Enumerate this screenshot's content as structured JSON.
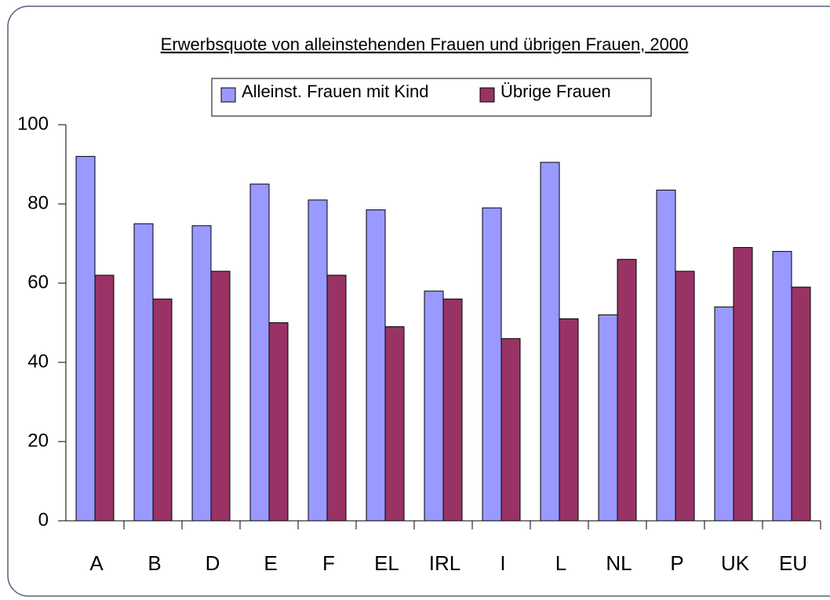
{
  "chart_data": {
    "type": "bar",
    "title": "Erwerbsquote von alleinstehenden Frauen und übrigen Frauen, 2000",
    "categories": [
      "A",
      "B",
      "D",
      "E",
      "F",
      "EL",
      "IRL",
      "I",
      "L",
      "NL",
      "P",
      "UK",
      "EU"
    ],
    "series": [
      {
        "name": "Alleinst. Frauen mit Kind",
        "color": "#9999ff",
        "values": [
          92,
          75,
          74.5,
          85,
          81,
          78.5,
          58,
          79,
          90.5,
          52,
          83.5,
          54,
          68
        ]
      },
      {
        "name": "Übrige Frauen",
        "color": "#993366",
        "values": [
          62,
          56,
          63,
          50,
          62,
          49,
          56,
          46,
          51,
          66,
          63,
          69,
          59
        ]
      }
    ],
    "ylim": [
      0,
      100
    ],
    "yticks": [
      0,
      20,
      40,
      60,
      80,
      100
    ],
    "grid": false,
    "legend": "top"
  }
}
